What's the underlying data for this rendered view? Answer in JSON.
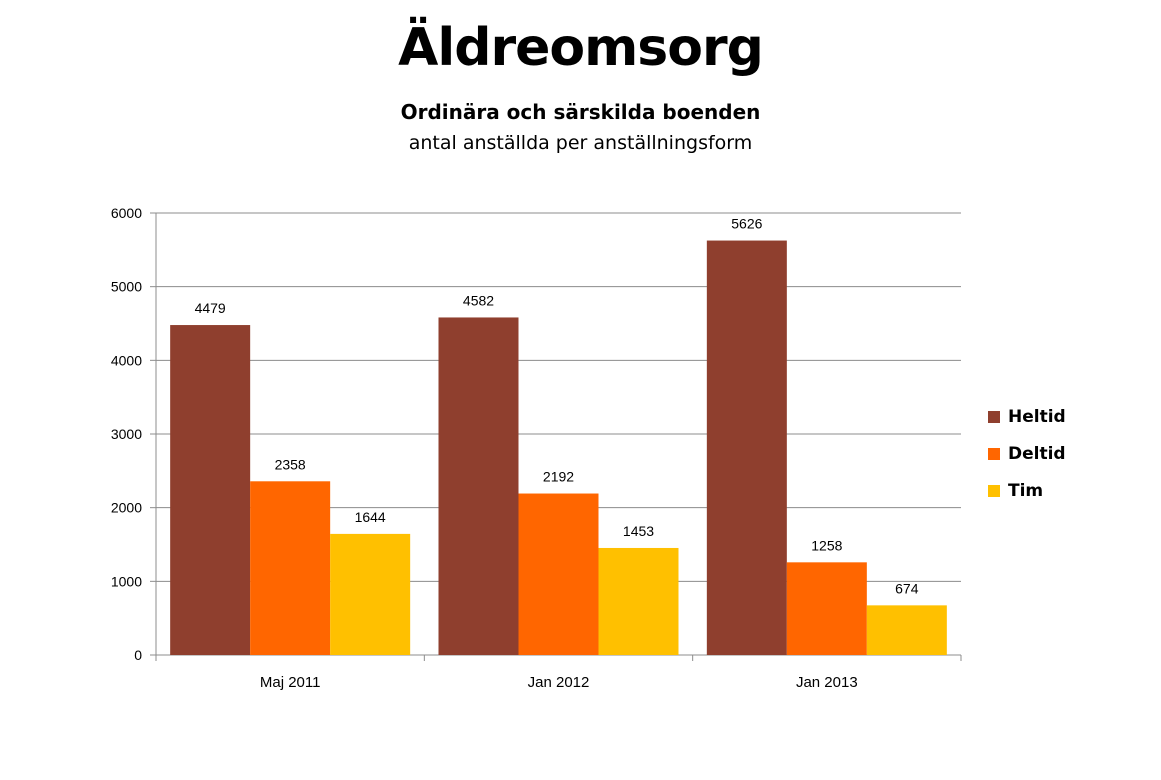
{
  "chart_data": {
    "type": "bar",
    "title": "Äldreomsorg",
    "subtitle": "Ordinära och särskilda boenden",
    "caption": "antal anställda per anställningsform",
    "categories": [
      "Maj 2011",
      "Jan 2012",
      "Jan 2013"
    ],
    "series": [
      {
        "name": "Heltid",
        "color": "#8F3F2E",
        "values": [
          4479,
          4582,
          5626
        ]
      },
      {
        "name": "Deltid",
        "color": "#FF6600",
        "values": [
          2358,
          2192,
          1258
        ]
      },
      {
        "name": "Tim",
        "color": "#FFC000",
        "values": [
          1644,
          1453,
          674
        ]
      }
    ],
    "ylim": [
      0,
      6000
    ],
    "yticks": [
      "0",
      "1000",
      "2000",
      "3000",
      "4000",
      "5000",
      "6000"
    ],
    "grid": true,
    "legend": "right",
    "data_labels": true
  }
}
